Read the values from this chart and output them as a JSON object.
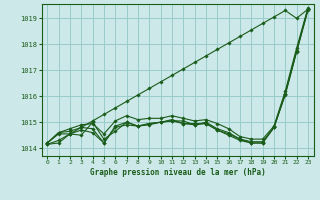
{
  "background_color": "#cce8e8",
  "plot_bg_color": "#cce8e8",
  "grid_color": "#99cccc",
  "line_color": "#1a5c1a",
  "title": "Graphe pression niveau de la mer (hPa)",
  "xlim": [
    -0.5,
    23.5
  ],
  "ylim": [
    1013.7,
    1019.55
  ],
  "yticks": [
    1014,
    1015,
    1016,
    1017,
    1018,
    1019
  ],
  "xticks": [
    0,
    1,
    2,
    3,
    4,
    5,
    6,
    7,
    8,
    9,
    10,
    11,
    12,
    13,
    14,
    15,
    16,
    17,
    18,
    19,
    20,
    21,
    22,
    23
  ],
  "series": [
    [
      1014.2,
      1014.55,
      1014.55,
      1014.7,
      1014.6,
      1014.2,
      1014.8,
      1014.9,
      1014.85,
      1014.95,
      1015.0,
      1015.05,
      1015.05,
      1014.9,
      1015.0,
      1014.75,
      1014.6,
      1014.35,
      1014.25,
      1014.25,
      1014.8,
      1016.1,
      1017.75,
      1019.35
    ],
    [
      1014.2,
      1014.6,
      1014.65,
      1014.8,
      1014.75,
      1014.2,
      1014.85,
      1015.0,
      1014.85,
      1014.9,
      1015.0,
      1015.05,
      1014.95,
      1014.9,
      1014.95,
      1014.7,
      1014.55,
      1014.35,
      1014.2,
      1014.2,
      1014.8,
      1016.1,
      1017.75,
      1019.35
    ],
    [
      1014.2,
      1014.6,
      1014.75,
      1014.9,
      1014.95,
      1014.55,
      1015.05,
      1015.25,
      1015.1,
      1015.15,
      1015.15,
      1015.25,
      1015.15,
      1015.05,
      1015.1,
      1014.95,
      1014.75,
      1014.45,
      1014.35,
      1014.35,
      1014.85,
      1016.2,
      1017.85,
      1019.4
    ],
    [
      1014.15,
      1014.2,
      1014.55,
      1014.5,
      1015.0,
      1014.35,
      1014.65,
      1015.0,
      1014.85,
      1014.95,
      1015.0,
      1015.1,
      1014.95,
      1014.95,
      1014.95,
      1014.7,
      1014.5,
      1014.3,
      1014.2,
      1014.2,
      1014.8,
      1016.05,
      1017.7,
      1019.3
    ]
  ],
  "steep_series": [
    1014.15,
    1014.3,
    1014.55,
    1014.8,
    1015.05,
    1015.3,
    1015.55,
    1015.8,
    1016.05,
    1016.3,
    1016.55,
    1016.8,
    1017.05,
    1017.3,
    1017.55,
    1017.8,
    1018.05,
    1018.3,
    1018.55,
    1018.8,
    1019.05,
    1019.3,
    1019.0,
    1019.35
  ]
}
